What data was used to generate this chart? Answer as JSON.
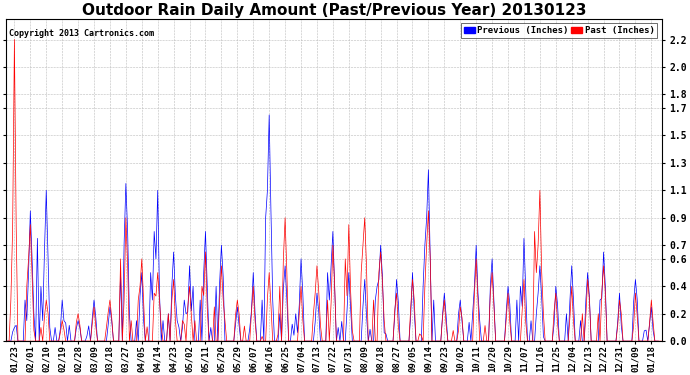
{
  "title": "Outdoor Rain Daily Amount (Past/Previous Year) 20130123",
  "copyright": "Copyright 2013 Cartronics.com",
  "yticks": [
    0.0,
    0.2,
    0.4,
    0.6,
    0.7,
    0.9,
    1.1,
    1.3,
    1.5,
    1.7,
    1.8,
    2.0,
    2.2
  ],
  "ymin": 0.0,
  "ymax": 2.35,
  "legend_labels": [
    "Previous (Inches)",
    "Past (Inches)"
  ],
  "legend_colors": [
    "#0000ff",
    "#ff0000"
  ],
  "background_color": "#ffffff",
  "grid_color": "#bbbbbb",
  "title_fontsize": 11,
  "tick_fontsize": 6.5,
  "x_labels": [
    "01/23",
    "02/01",
    "02/10",
    "02/19",
    "02/28",
    "03/09",
    "03/18",
    "03/27",
    "04/05",
    "04/14",
    "04/23",
    "05/02",
    "05/11",
    "05/20",
    "05/29",
    "06/07",
    "06/16",
    "06/25",
    "07/04",
    "07/13",
    "07/22",
    "07/31",
    "08/09",
    "08/18",
    "08/27",
    "09/05",
    "09/14",
    "09/23",
    "10/02",
    "10/11",
    "10/20",
    "10/29",
    "11/07",
    "11/16",
    "11/25",
    "12/04",
    "12/13",
    "12/22",
    "12/31",
    "01/09",
    "01/18"
  ],
  "blue_data": [
    0.1,
    0.95,
    1.1,
    0.3,
    0.15,
    0.3,
    0.25,
    1.15,
    0.5,
    1.1,
    0.65,
    0.55,
    0.8,
    0.7,
    0.25,
    0.5,
    1.65,
    0.55,
    0.6,
    0.35,
    0.8,
    0.5,
    0.45,
    0.7,
    0.45,
    0.5,
    1.25,
    0.35,
    0.3,
    0.7,
    0.6,
    0.4,
    0.75,
    0.55,
    0.4,
    0.55,
    0.5,
    0.65,
    0.35,
    0.45,
    0.25
  ],
  "red_data": [
    2.2,
    0.85,
    0.3,
    0.15,
    0.2,
    0.25,
    0.3,
    0.9,
    0.6,
    0.5,
    0.45,
    0.4,
    0.65,
    0.55,
    0.3,
    0.4,
    0.5,
    0.9,
    0.4,
    0.55,
    0.7,
    0.85,
    0.9,
    0.65,
    0.35,
    0.45,
    0.95,
    0.3,
    0.25,
    0.6,
    0.5,
    0.35,
    0.45,
    1.1,
    0.35,
    0.4,
    0.45,
    0.55,
    0.3,
    0.35,
    0.3
  ],
  "blue_extra": {
    "02/01": [
      0.3,
      0.15,
      0.08,
      0.6,
      0.2
    ],
    "02/10": [
      0.75,
      0.4,
      0.15,
      0.5,
      0.3,
      0.1
    ],
    "02/19": [
      0.1,
      0.05,
      0.15,
      0.08
    ],
    "03/27": [
      0.2,
      0.5,
      0.8,
      0.4,
      0.2
    ],
    "04/05": [
      0.15,
      0.25,
      0.1
    ],
    "04/14": [
      0.3,
      0.5,
      0.8,
      0.6,
      0.3,
      0.15
    ],
    "04/23": [
      0.2,
      0.4,
      0.3,
      0.15
    ],
    "05/02": [
      0.1,
      0.3,
      0.2,
      0.15,
      0.4,
      0.2
    ],
    "05/11": [
      0.3,
      0.5,
      0.4,
      0.2,
      0.1
    ],
    "05/20": [
      0.4,
      0.6,
      0.35,
      0.2
    ],
    "06/16": [
      0.3,
      0.6,
      0.9,
      1.1,
      0.5,
      0.3
    ],
    "06/25": [
      0.2,
      0.3,
      0.15
    ],
    "07/04": [
      0.2,
      0.35,
      0.2
    ],
    "07/22": [
      0.3,
      0.5,
      0.4,
      0.2,
      0.1
    ],
    "08/18": [
      0.3,
      0.4,
      0.3,
      0.15
    ],
    "09/14": [
      0.4,
      0.7,
      0.9,
      0.6,
      0.3
    ],
    "10/11": [
      0.2,
      0.4,
      0.3,
      0.15
    ],
    "11/07": [
      0.3,
      0.4,
      0.3,
      0.2
    ],
    "11/16": [
      0.2,
      0.35,
      0.25
    ],
    "12/04": [
      0.2,
      0.3,
      0.2
    ],
    "12/13": [
      0.15,
      0.25,
      0.3,
      0.15
    ],
    "12/22": [
      0.3,
      0.4,
      0.3
    ]
  },
  "red_extra": {
    "01/23": [
      0.3,
      0.15,
      0.08,
      0.05
    ],
    "02/01": [
      0.4,
      0.6,
      0.3,
      0.15,
      0.08
    ],
    "02/10": [
      0.1,
      0.05,
      0.08
    ],
    "03/18": [
      0.1,
      0.05
    ],
    "03/27": [
      0.4,
      0.6,
      0.5,
      0.3,
      0.15
    ],
    "04/05": [
      0.3,
      0.4,
      0.2,
      0.1
    ],
    "04/14": [
      0.2,
      0.35,
      0.25,
      0.1
    ],
    "04/23": [
      0.2,
      0.3,
      0.15
    ],
    "05/02": [
      0.15,
      0.25,
      0.15,
      0.3,
      0.15
    ],
    "05/11": [
      0.3,
      0.4,
      0.3,
      0.15
    ],
    "05/20": [
      0.25,
      0.4,
      0.3,
      0.15
    ],
    "06/07": [
      0.15,
      0.25,
      0.15
    ],
    "06/25": [
      0.4,
      0.6,
      0.5,
      0.3
    ],
    "07/13": [
      0.2,
      0.35,
      0.25,
      0.1
    ],
    "07/22": [
      0.3,
      0.5,
      0.4,
      0.2
    ],
    "07/31": [
      0.4,
      0.6,
      0.4,
      0.2
    ],
    "08/09": [
      0.5,
      0.7,
      0.5,
      0.3
    ],
    "08/18": [
      0.3,
      0.5,
      0.3,
      0.15
    ],
    "09/05": [
      0.15,
      0.3,
      0.2
    ],
    "09/14": [
      0.4,
      0.7,
      0.5,
      0.3
    ],
    "10/11": [
      0.2,
      0.4,
      0.3
    ],
    "10/20": [
      0.2,
      0.35,
      0.25
    ],
    "11/16": [
      0.5,
      0.8,
      0.7,
      0.4,
      0.2
    ],
    "12/13": [
      0.2,
      0.3,
      0.2
    ],
    "12/22": [
      0.2,
      0.35,
      0.25
    ]
  }
}
